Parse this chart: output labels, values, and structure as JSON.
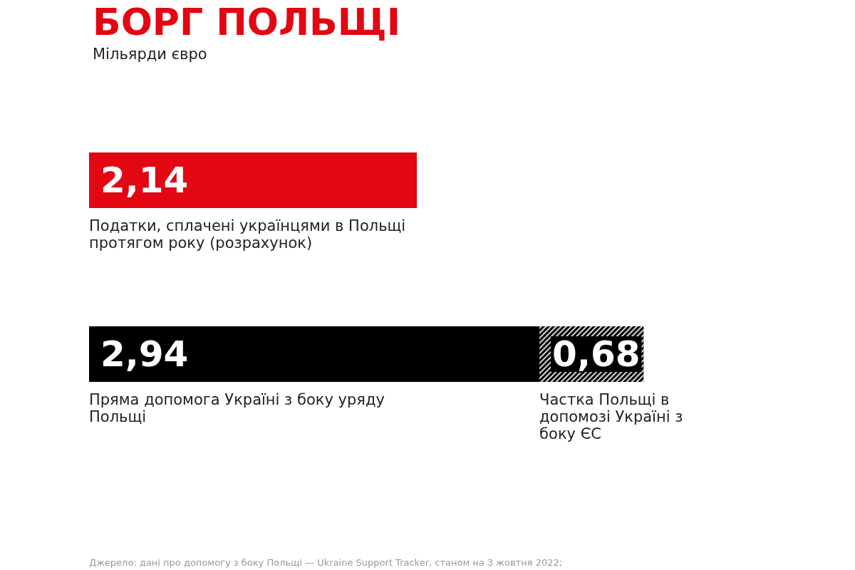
{
  "chart_data": {
    "type": "bar",
    "orientation": "horizontal",
    "stacked": true,
    "title": "БОРГ ПОЛЬЩІ",
    "subtitle": "Мільярди євро",
    "categories": [
      "Податки, сплачені українцями в Польщі протягом року (розрахунок)",
      "Пряма допомога Україні з боку уряду Польщі"
    ],
    "series": [
      {
        "colors": [
          "#e30613",
          "#000000"
        ],
        "values": [
          2.14,
          2.94
        ],
        "value_labels": [
          "2,14",
          "2,94"
        ]
      },
      {
        "name": "Частка Польщі в допомозі Україні з боку ЄС",
        "color": "#000000",
        "values": [
          null,
          0.68
        ],
        "value_labels": [
          null,
          "0,68"
        ]
      }
    ],
    "legend": false,
    "annotations": [
      "Джерело: дані про допомогу з боку Польщі — Ukraine Support Tracker, станом на 3 жовтня 2022;"
    ]
  }
}
